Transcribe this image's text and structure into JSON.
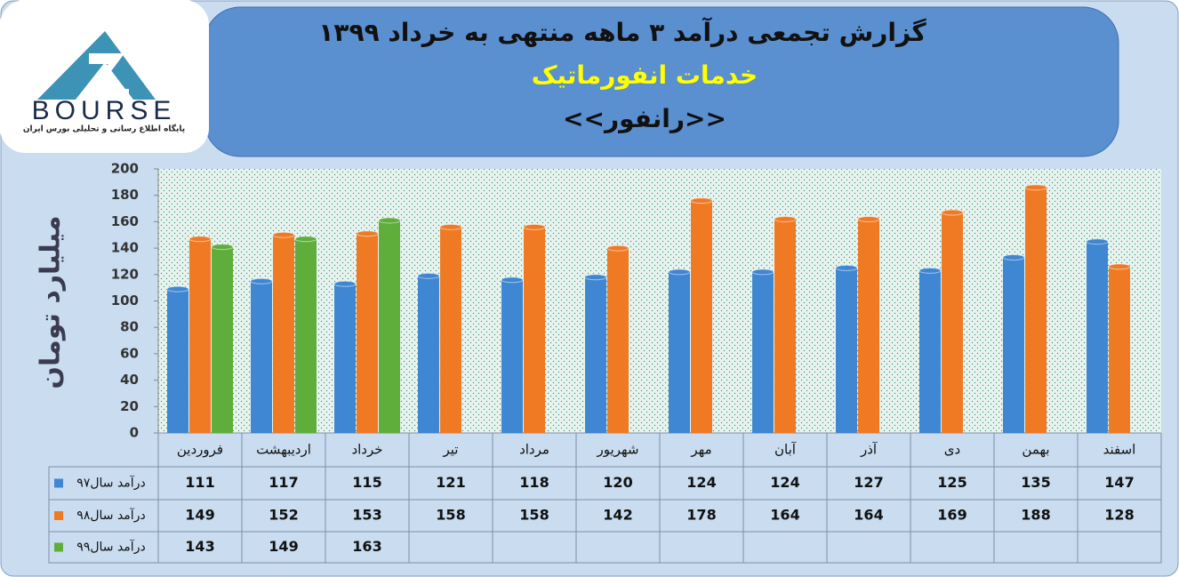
{
  "logo": {
    "name": "BOURSE",
    "tagline": "پایگاه اطلاع رسانی و تحلیلی بورس ایران"
  },
  "chart_data": {
    "type": "bar",
    "title": "گزارش تجمعی درآمد  ۳ ماهه منتهی به خرداد ۱۳۹۹",
    "subtitle": "خدمات انفورماتیک",
    "symbol": "<<رانفور>>",
    "y_label": "میلیارد تومان",
    "categories": [
      "فروردین",
      "اردیبهشت",
      "خرداد",
      "تیر",
      "مرداد",
      "شهریور",
      "مهر",
      "آبان",
      "آذر",
      "دی",
      "بهمن",
      "اسفند"
    ],
    "series": [
      {
        "name": "درآمد سال۹۷",
        "color": "#3f86d3",
        "values": [
          111,
          117,
          115,
          121,
          118,
          120,
          124,
          124,
          127,
          125,
          135,
          147
        ]
      },
      {
        "name": "درآمد سال۹۸",
        "color": "#f07a24",
        "values": [
          149,
          152,
          153,
          158,
          158,
          142,
          178,
          164,
          164,
          169,
          188,
          128
        ]
      },
      {
        "name": "درآمد سال۹۹",
        "color": "#5fae3c",
        "values": [
          143,
          149,
          163,
          null,
          null,
          null,
          null,
          null,
          null,
          null,
          null,
          null
        ]
      }
    ],
    "ylim": [
      0,
      200
    ],
    "yticks": [
      0,
      20,
      40,
      60,
      80,
      100,
      120,
      140,
      160,
      180,
      200
    ],
    "grid": false
  }
}
